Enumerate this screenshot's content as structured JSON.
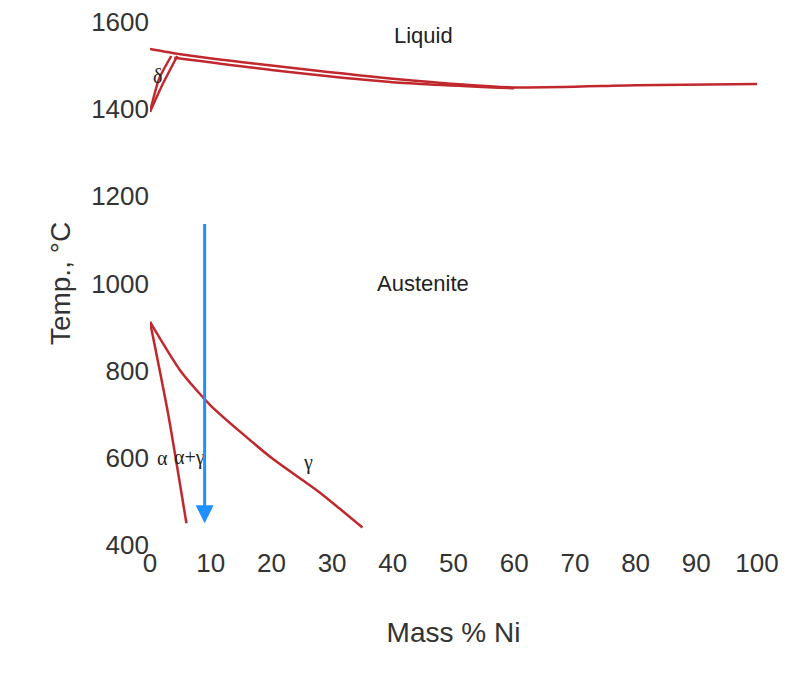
{
  "chart_data": {
    "type": "line",
    "x_label": "Mass % Ni",
    "y_label": "Temp., °C",
    "xlim": [
      0,
      100
    ],
    "ylim": [
      400,
      1600
    ],
    "xticks": [
      0,
      10,
      20,
      30,
      40,
      50,
      60,
      70,
      80,
      90,
      100
    ],
    "yticks": [
      400,
      600,
      800,
      1000,
      1200,
      1400,
      1600
    ],
    "grid": false,
    "series": [
      {
        "color": "#c0282d",
        "x": [
          0,
          5,
          20,
          40,
          60,
          80,
          100
        ],
        "values": [
          1538,
          1526,
          1500,
          1470,
          1450,
          1455,
          1458
        ]
      },
      {
        "color": "#c0282d",
        "x": [
          4,
          20,
          40,
          60
        ],
        "values": [
          1518,
          1490,
          1462,
          1448
        ]
      },
      {
        "color": "#c0282d",
        "x": [
          0,
          2,
          4.5
        ],
        "values": [
          1394,
          1455,
          1522
        ]
      },
      {
        "color": "#c0282d",
        "x": [
          0,
          1.5,
          3.5
        ],
        "values": [
          1394,
          1470,
          1522
        ]
      },
      {
        "color": "#c0282d",
        "x": [
          0,
          3,
          6
        ],
        "values": [
          912,
          700,
          450
        ]
      },
      {
        "color": "#c0282d",
        "x": [
          0,
          5,
          10,
          20,
          28,
          35
        ],
        "values": [
          912,
          800,
          720,
          600,
          520,
          440
        ]
      }
    ],
    "annotations": [
      {
        "text": "Liquid",
        "x": 45,
        "y": 1568
      },
      {
        "text": "δ",
        "x": 1.3,
        "y": 1475
      },
      {
        "text": "Austenite",
        "x": 45,
        "y": 1000
      },
      {
        "text": "α",
        "x": 2,
        "y": 600
      },
      {
        "text": "α+γ",
        "x": 6.5,
        "y": 600
      },
      {
        "text": "γ",
        "x": 26,
        "y": 590
      }
    ],
    "arrows": [
      {
        "x": 9,
        "y_from": 1140,
        "y_to": 450,
        "color": "#1e90ff"
      }
    ]
  }
}
